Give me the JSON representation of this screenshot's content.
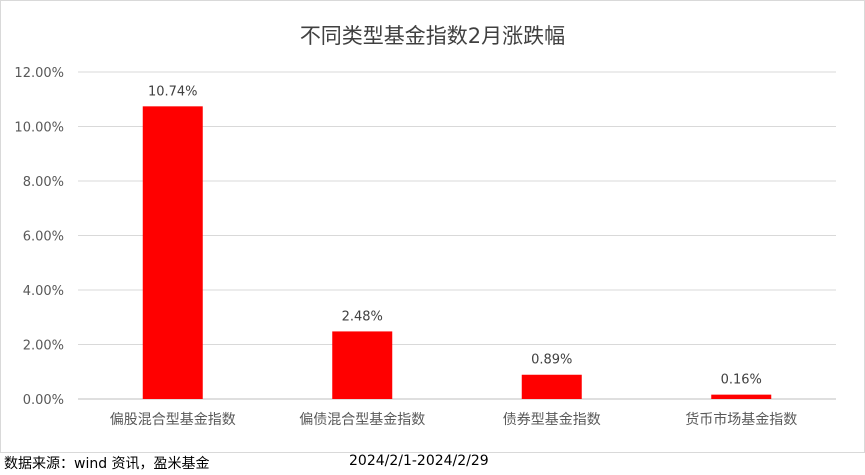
{
  "chart_data": {
    "type": "bar",
    "title": "不同类型基金指数2月涨跌幅",
    "categories": [
      "偏股混合型基金指数",
      "偏债混合型基金指数",
      "债券型基金指数",
      "货币市场基金指数"
    ],
    "values": [
      10.74,
      2.48,
      0.89,
      0.16
    ],
    "value_labels": [
      "10.74%",
      "2.48%",
      "0.89%",
      "0.16%"
    ],
    "unit": "%",
    "ylim": [
      0,
      12
    ],
    "yticks": [
      0,
      2,
      4,
      6,
      8,
      10,
      12
    ],
    "ytick_labels": [
      "0.00%",
      "2.00%",
      "4.00%",
      "6.00%",
      "8.00%",
      "10.00%",
      "12.00%"
    ],
    "xlabel": "",
    "ylabel": "",
    "grid": true,
    "bar_color": "#ff0000"
  },
  "footer": {
    "source": "数据来源：wind 资讯，盈米基金",
    "date_range": "2024/2/1-2024/2/29"
  }
}
